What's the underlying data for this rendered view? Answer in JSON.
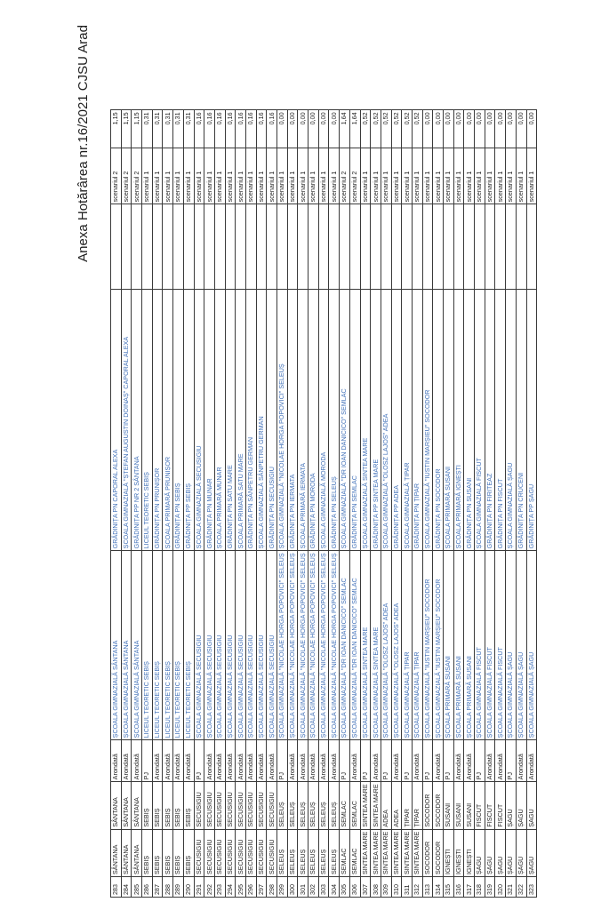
{
  "header": {
    "title": "Anexa Hotărârea nr.16/2021 CJSU Arad"
  },
  "table": {
    "rows": [
      {
        "nr": "283",
        "loc": "SÂNTANA",
        "uat": "SÂNTANA",
        "status": "Arondată",
        "pj": "ȘCOALA GIMNAZIALĂ SÂNTANA",
        "unit": "GRĂDINIȚA PN CAPORAL ALEXA",
        "scenario": "scenariul 2",
        "value": "1,15"
      },
      {
        "nr": "284",
        "loc": "SÂNTANA",
        "uat": "SÂNTANA",
        "status": "Arondată",
        "pj": "ȘCOALA GIMNAZIALĂ SÂNTANA",
        "unit": "ȘCOALA GIMNAZIALĂ \"ȘTEFAN AUGUSTIN DOINAȘ\" CAPORAL ALEXA",
        "scenario": "scenariul 2",
        "value": "1,15"
      },
      {
        "nr": "285",
        "loc": "SÂNTANA",
        "uat": "SÂNTANA",
        "status": "Arondată",
        "pj": "ȘCOALA GIMNAZIALĂ SÂNTANA",
        "unit": "GRĂDINIȚA PP NR 2 SÂNTANA",
        "scenario": "scenariul 2",
        "value": "1,15"
      },
      {
        "nr": "286",
        "loc": "SEBIȘ",
        "uat": "SEBIȘ",
        "status": "PJ",
        "pj": "LICEUL TEORETIC SEBIȘ",
        "unit": "LICEUL TEORETIC SEBIȘ",
        "scenario": "scenariul 1",
        "value": "0,31"
      },
      {
        "nr": "287",
        "loc": "SEBIȘ",
        "uat": "SEBIȘ",
        "status": "Arondată",
        "pj": "LICEUL TEORETIC SEBIȘ",
        "unit": "GRĂDINIȚA PN PRUNIȘOR",
        "scenario": "scenariul 1",
        "value": "0,31"
      },
      {
        "nr": "288",
        "loc": "SEBIȘ",
        "uat": "SEBIȘ",
        "status": "Arondată",
        "pj": "LICEUL TEORETIC SEBIȘ",
        "unit": "ȘCOALA PRIMARĂ PRUNIȘOR",
        "scenario": "scenariul 1",
        "value": "0,31"
      },
      {
        "nr": "289",
        "loc": "SEBIȘ",
        "uat": "SEBIȘ",
        "status": "Arondată",
        "pj": "LICEUL TEORETIC SEBIȘ",
        "unit": "GRĂDINIȚA PN SEBIȘ",
        "scenario": "scenariul 1",
        "value": "0,31"
      },
      {
        "nr": "290",
        "loc": "SEBIȘ",
        "uat": "SEBIȘ",
        "status": "Arondată",
        "pj": "LICEUL TEORETIC SEBIȘ",
        "unit": "GRĂDINIȚA PP SEBIȘ",
        "scenario": "scenariul 1",
        "value": "0,31"
      },
      {
        "nr": "291",
        "loc": "SECUSIGIU",
        "uat": "SECUSIGIU",
        "status": "PJ",
        "pj": "ȘCOALA GIMNAZIALĂ SECUSIGIU",
        "unit": "ȘCOALA GIMNAZIALĂ SECUSIGIU",
        "scenario": "scenariul 1",
        "value": "0,16"
      },
      {
        "nr": "292",
        "loc": "SECUSIGIU",
        "uat": "SECUSIGIU",
        "status": "Arondată",
        "pj": "ȘCOALA GIMNAZIALĂ SECUSIGIU",
        "unit": "GRĂDINIȚA PN MUNAR",
        "scenario": "scenariul 1",
        "value": "0,16"
      },
      {
        "nr": "293",
        "loc": "SECUSIGIU",
        "uat": "SECUSIGIU",
        "status": "Arondată",
        "pj": "ȘCOALA GIMNAZIALĂ SECUSIGIU",
        "unit": "ȘCOALA PRIMARĂ MUNAR",
        "scenario": "scenariul 1",
        "value": "0,16"
      },
      {
        "nr": "294",
        "loc": "SECUSIGIU",
        "uat": "SECUSIGIU",
        "status": "Arondată",
        "pj": "ȘCOALA GIMNAZIALĂ SECUSIGIU",
        "unit": "GRĂDINIȚA PN SATU MARE",
        "scenario": "scenariul 1",
        "value": "0,16"
      },
      {
        "nr": "295",
        "loc": "SECUSIGIU",
        "uat": "SECUSIGIU",
        "status": "Arondată",
        "pj": "ȘCOALA GIMNAZIALĂ SECUSIGIU",
        "unit": "ȘCOALA PRIMARĂ SATU MARE",
        "scenario": "scenariul 1",
        "value": "0,16"
      },
      {
        "nr": "296",
        "loc": "SECUSIGIU",
        "uat": "SECUSIGIU",
        "status": "Arondată",
        "pj": "ȘCOALA GIMNAZIALĂ SECUSIGIU",
        "unit": "GRĂDINIȚA PN SÂNPETRU GERMAN",
        "scenario": "scenariul 1",
        "value": "0,16"
      },
      {
        "nr": "297",
        "loc": "SECUSIGIU",
        "uat": "SECUSIGIU",
        "status": "Arondată",
        "pj": "ȘCOALA GIMNAZIALĂ SECUSIGIU",
        "unit": "ȘCOALA GIMNAZIALĂ SÂNPETRU GERMAN",
        "scenario": "scenariul 1",
        "value": "0,16"
      },
      {
        "nr": "298",
        "loc": "SECUSIGIU",
        "uat": "SECUSIGIU",
        "status": "Arondată",
        "pj": "ȘCOALA GIMNAZIALĂ SECUSIGIU",
        "unit": "GRĂDINIȚA PN SECUSIGIU",
        "scenario": "scenariul 1",
        "value": "0,16"
      },
      {
        "nr": "299",
        "loc": "SELEUȘ",
        "uat": "SELEUȘ",
        "status": "PJ",
        "pj": "ȘCOALA GIMNAZIALĂ \"NICOLAE HORGA POPOVICI\" SELEUȘ",
        "unit": "ȘCOALA GIMNAZIALĂ \"NICOLAE HORGA POPOVICI\" SELEUȘ",
        "scenario": "scenariul 1",
        "value": "0,00"
      },
      {
        "nr": "300",
        "loc": "SELEUȘ",
        "uat": "SELEUȘ",
        "status": "Arondată",
        "pj": "ȘCOALA GIMNAZIALĂ \"NICOLAE HORGA POPOVICI\" SELEUȘ",
        "unit": "GRĂDINIȚA PN IERMATA",
        "scenario": "scenariul 1",
        "value": "0,00"
      },
      {
        "nr": "301",
        "loc": "SELEUȘ",
        "uat": "SELEUȘ",
        "status": "Arondată",
        "pj": "ȘCOALA GIMNAZIALĂ \"NICOLAE HORGA POPOVICI\" SELEUȘ",
        "unit": "ȘCOALA PRIMARĂ IERMATA",
        "scenario": "scenariul 1",
        "value": "0,00"
      },
      {
        "nr": "302",
        "loc": "SELEUȘ",
        "uat": "SELEUȘ",
        "status": "Arondată",
        "pj": "ȘCOALA GIMNAZIALĂ \"NICOLAE HORGA POPOVICI\" SELEUȘ",
        "unit": "GRĂDINIȚA PN MORODA",
        "scenario": "scenariul 1",
        "value": "0,00"
      },
      {
        "nr": "303",
        "loc": "SELEUȘ",
        "uat": "SELEUȘ",
        "status": "Arondată",
        "pj": "ȘCOALA GIMNAZIALĂ \"NICOLAE HORGA POPOVICI\" SELEUȘ",
        "unit": "ȘCOALA GIMNAZIALĂ MORODA",
        "scenario": "scenariul 1",
        "value": "0,00"
      },
      {
        "nr": "304",
        "loc": "SELEUȘ",
        "uat": "SELEUȘ",
        "status": "Arondată",
        "pj": "ȘCOALA GIMNAZIALĂ \"NICOLAE HORGA POPOVICI\" SELEUȘ",
        "unit": "GRĂDINIȚA PN SELEUȘ",
        "scenario": "scenariul 1",
        "value": "0,00"
      },
      {
        "nr": "305",
        "loc": "SEMLAC",
        "uat": "SEMLAC",
        "status": "PJ",
        "pj": "ȘCOALA GIMNAZIALĂ \"DR IOAN DANICICO\" SEMLAC",
        "unit": "ȘCOALA GIMNAZIALĂ \"DR IOAN DANICICO\" SEMLAC",
        "scenario": "scenariul 2",
        "value": "1,64"
      },
      {
        "nr": "306",
        "loc": "SEMLAC",
        "uat": "SEMLAC",
        "status": "Arondată",
        "pj": "ȘCOALA GIMNAZIALĂ \"DR IOAN DANICICO\" SEMLAC",
        "unit": "GRĂDINIȚA PN SEMLAC",
        "scenario": "scenariul 2",
        "value": "1,64"
      },
      {
        "nr": "307",
        "loc": "SINTEA MARE",
        "uat": "SINTEA MARE",
        "status": "PJ",
        "pj": "ȘCOALA GIMNAZIALĂ SINTEA MARE",
        "unit": "ȘCOALA GIMNAZIALĂ SINTEA MARE",
        "scenario": "scenariul 1",
        "value": "0,52"
      },
      {
        "nr": "308",
        "loc": "SINTEA MARE",
        "uat": "SINTEA MARE",
        "status": "Arondată",
        "pj": "ȘCOALA GIMNAZIALĂ SINTEA MARE",
        "unit": "GRĂDINIȚA PP SINTEA MARE",
        "scenario": "scenariul 1",
        "value": "0,52"
      },
      {
        "nr": "309",
        "loc": "SINTEA MARE",
        "uat": "ADEA",
        "status": "PJ",
        "pj": "ȘCOALA GIMNAZIALĂ \"OLOSZ LAJOS\" ADEA",
        "unit": "ȘCOALA GIMNAZIALĂ \"OLOSZ LAJOS\" ADEA",
        "scenario": "scenariul 1",
        "value": "0,52"
      },
      {
        "nr": "310",
        "loc": "SINTEA MARE",
        "uat": "ADEA",
        "status": "Arondată",
        "pj": "ȘCOALA GIMNAZIALĂ \"OLOSZ LAJOS\" ADEA",
        "unit": "GRĂDINIȚA PP ADEA",
        "scenario": "scenariul 1",
        "value": "0,52"
      },
      {
        "nr": "311",
        "loc": "SINTEA MARE",
        "uat": "ȚIPAR",
        "status": "PJ",
        "pj": "ȘCOALA GIMNAZIALĂ ȚIPAR",
        "unit": "ȘCOALA GIMNAZIALĂ ȚIPAR",
        "scenario": "scenariul 1",
        "value": "0,52"
      },
      {
        "nr": "312",
        "loc": "SINTEA MARE",
        "uat": "ȚIPAR",
        "status": "Arondată",
        "pj": "ȘCOALA GIMNAZIALĂ ȚIPAR",
        "unit": "GRĂDINIȚA PN ȚIPAR",
        "scenario": "scenariul 1",
        "value": "0,52"
      },
      {
        "nr": "313",
        "loc": "SOCODOR",
        "uat": "SOCODOR",
        "status": "PJ",
        "pj": "ȘCOALA GIMNAZIALĂ \"IUSTIN MARȘIEU\" SOCODOR",
        "unit": "ȘCOALA GIMNAZIALĂ \"IUSTIN MARȘIEU\" SOCODOR",
        "scenario": "scenariul 1",
        "value": "0,00"
      },
      {
        "nr": "314",
        "loc": "SOCODOR",
        "uat": "SOCODOR",
        "status": "Arondată",
        "pj": "ȘCOALA GIMNAZIALĂ \"IUSTIN MARȘIEU\" SOCODOR",
        "unit": "GRĂDINIȚA PN SOCODOR",
        "scenario": "scenariul 1",
        "value": "0,00"
      },
      {
        "nr": "315",
        "loc": "IGNEȘTI",
        "uat": "SUSANI",
        "status": "PJ",
        "pj": "ȘCOALA PRIMARĂ SUSANI",
        "unit": "ȘCOALA PRIMARĂ SUSANI",
        "scenario": "scenariul 1",
        "value": "0,00"
      },
      {
        "nr": "316",
        "loc": "IGNEȘTI",
        "uat": "SUSANI",
        "status": "Arondată",
        "pj": "ȘCOALA PRIMARĂ SUSANI",
        "unit": "ȘCOALA PRIMARĂ IGNEȘTI",
        "scenario": "scenariul 1",
        "value": "0,00"
      },
      {
        "nr": "317",
        "loc": "IGNEȘTI",
        "uat": "SUSANI",
        "status": "Arondată",
        "pj": "ȘCOALA PRIMARĂ SUSANI",
        "unit": "GRĂDINIȚA PN SUSANI",
        "scenario": "scenariul 1",
        "value": "0,00"
      },
      {
        "nr": "318",
        "loc": "ȘAGU",
        "uat": "FISCUT",
        "status": "PJ",
        "pj": "ȘCOALA GIMNAZIALĂ FISCUT",
        "unit": "ȘCOALA GIMNAZIALĂ FISCUT",
        "scenario": "scenariul 1",
        "value": "0,00"
      },
      {
        "nr": "319",
        "loc": "ȘAGU",
        "uat": "FISCUT",
        "status": "Arondată",
        "pj": "ȘCOALA GIMNAZIALĂ FISCUT",
        "unit": "GRĂDINIȚA PN FIRITEAZ",
        "scenario": "scenariul 1",
        "value": "0,00"
      },
      {
        "nr": "320",
        "loc": "ȘAGU",
        "uat": "FISCUT",
        "status": "Arondată",
        "pj": "ȘCOALA GIMNAZIALĂ FISCUT",
        "unit": "GRĂDINIȚA PN FISCUT",
        "scenario": "scenariul 1",
        "value": "0,00"
      },
      {
        "nr": "321",
        "loc": "ȘAGU",
        "uat": "ȘAGU",
        "status": "PJ",
        "pj": "ȘCOALA GIMNAZIALĂ ȘAGU",
        "unit": "ȘCOALA GIMNAZIALĂ ȘAGU",
        "scenario": "scenariul 1",
        "value": "0,00"
      },
      {
        "nr": "322",
        "loc": "ȘAGU",
        "uat": "ȘAGU",
        "status": "Arondată",
        "pj": "ȘCOALA GIMNAZIALĂ ȘAGU",
        "unit": "GRĂDINIȚA PN CRUCENI",
        "scenario": "scenariul 1",
        "value": "0,00"
      },
      {
        "nr": "323",
        "loc": "ȘAGU",
        "uat": "ȘAGU",
        "status": "Arondată",
        "pj": "ȘCOALA GIMNAZIALĂ ȘAGU",
        "unit": "GRĂDINIȚA PP ȘAGU",
        "scenario": "scenariul 1",
        "value": "0,00"
      }
    ]
  }
}
